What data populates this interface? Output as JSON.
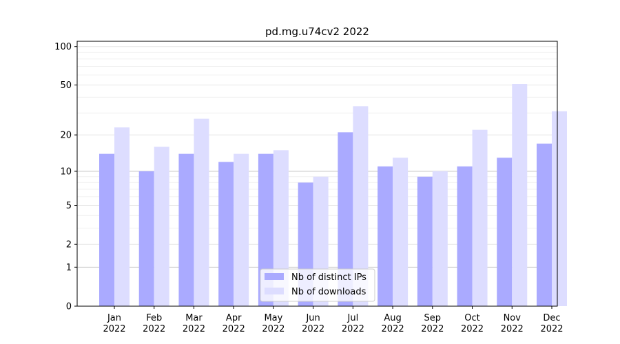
{
  "chart_data": {
    "type": "bar",
    "title": "pd.mg.u74cv2 2022",
    "xlabel": "",
    "ylabel": "",
    "yscale": "log1p",
    "ylim": [
      0,
      110
    ],
    "yticks": [
      0,
      1,
      2,
      5,
      10,
      20,
      50,
      100
    ],
    "categories": [
      [
        "Jan",
        "2022"
      ],
      [
        "Feb",
        "2022"
      ],
      [
        "Mar",
        "2022"
      ],
      [
        "Apr",
        "2022"
      ],
      [
        "May",
        "2022"
      ],
      [
        "Jun",
        "2022"
      ],
      [
        "Jul",
        "2022"
      ],
      [
        "Aug",
        "2022"
      ],
      [
        "Sep",
        "2022"
      ],
      [
        "Oct",
        "2022"
      ],
      [
        "Nov",
        "2022"
      ],
      [
        "Dec",
        "2022"
      ]
    ],
    "series": [
      {
        "name": "Nb of distinct IPs",
        "color": "#aaaaff",
        "values": [
          14,
          10,
          14,
          12,
          14,
          8,
          21,
          11,
          9,
          11,
          13,
          17
        ]
      },
      {
        "name": "Nb of downloads",
        "color": "#ddddff",
        "values": [
          23,
          16,
          27,
          14,
          15,
          9,
          34,
          13,
          10,
          22,
          51,
          31
        ]
      }
    ],
    "grid": "y",
    "legend": "bottom-center"
  }
}
